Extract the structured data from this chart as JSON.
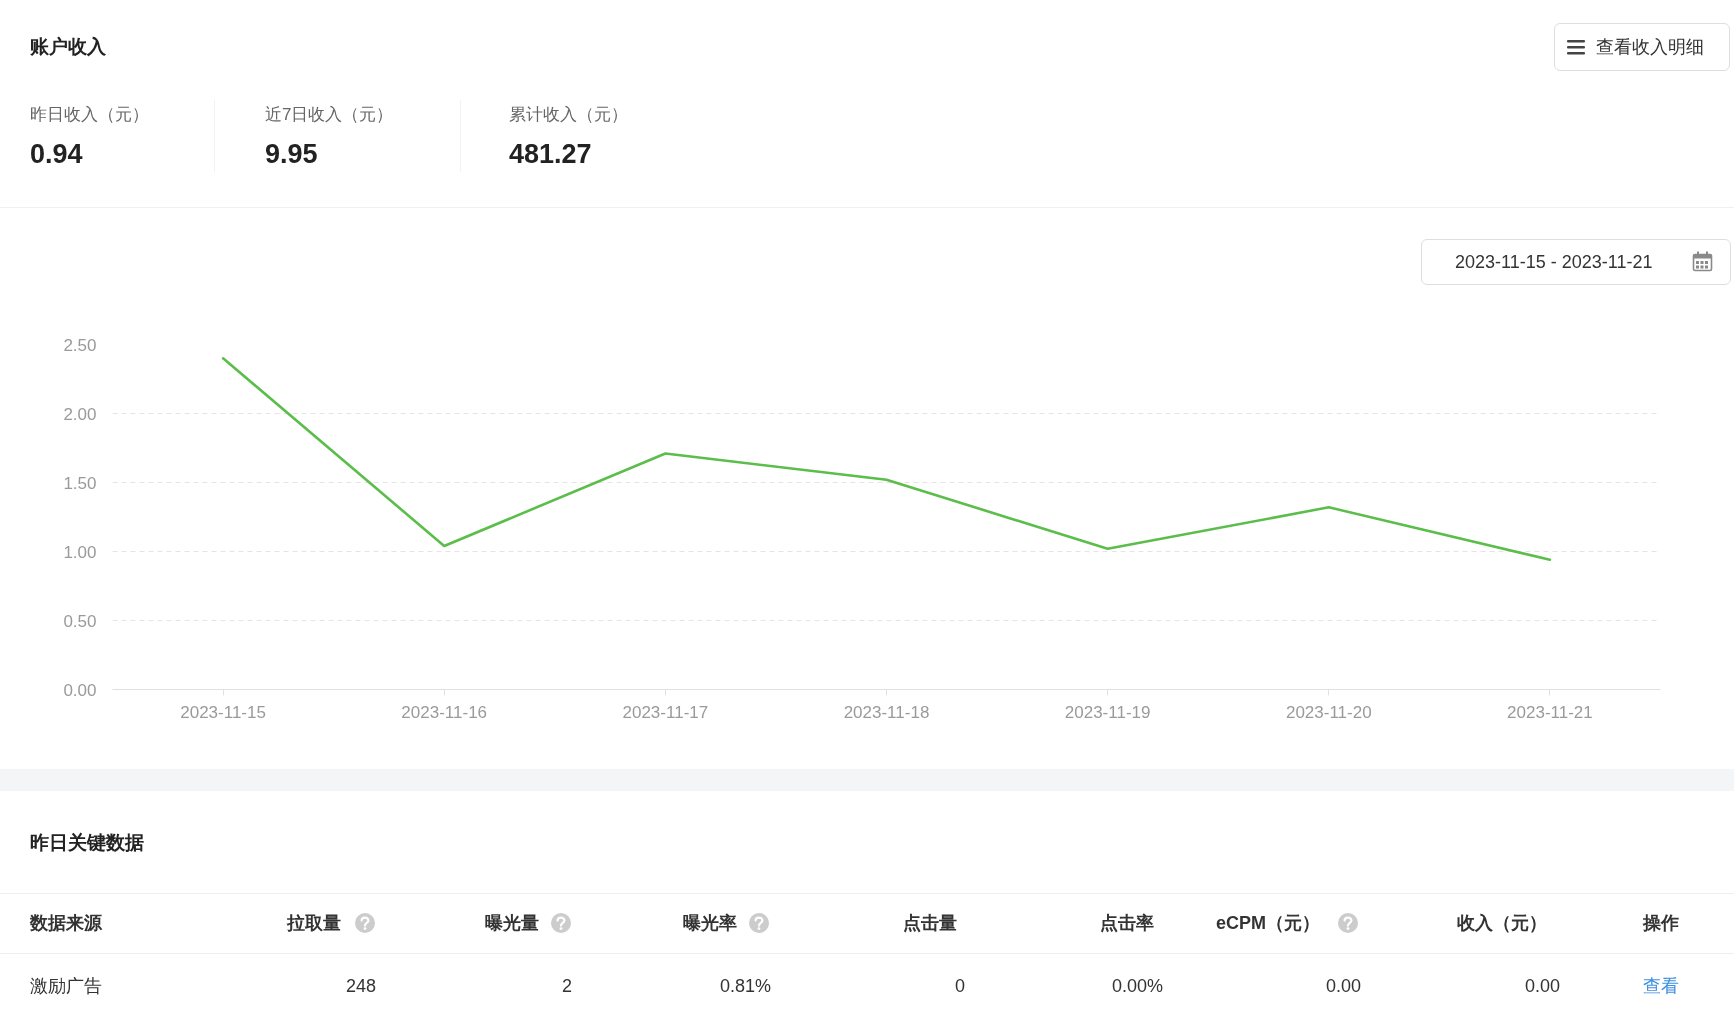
{
  "chart_data": {
    "type": "line",
    "title": "账户收入",
    "annotations": [
      "查看收入明细",
      "昨日收入（元）",
      "0.94",
      "近7日收入（元）",
      "9.95",
      "累计收入（元）",
      "481.27",
      "2023-11-15 - 2023-11-21",
      "昨日关键数据",
      "数据来源",
      "拉取量",
      "曝光量",
      "曝光率",
      "点击量",
      "点击率",
      "eCPM（元）",
      "收入（元）",
      "操作",
      "激励广告",
      "248",
      "2",
      "0.81%",
      "0",
      "0.00%",
      "0.00",
      "0.00",
      "查看"
    ],
    "categories": [
      "2023-11-15",
      "2023-11-16",
      "2023-11-17",
      "2023-11-18",
      "2023-11-19",
      "2023-11-20",
      "2023-11-21"
    ],
    "values": [
      2.4,
      1.04,
      1.71,
      1.52,
      1.02,
      1.32,
      0.94
    ],
    "color": "#5bbd4a",
    "ylim": [
      0,
      2.5
    ],
    "yticks": [
      {
        "value": 0,
        "label": "0.00"
      },
      {
        "value": 0.5,
        "label": "0.50"
      },
      {
        "value": 1,
        "label": "1.00"
      },
      {
        "value": 1.5,
        "label": "1.50"
      },
      {
        "value": 2,
        "label": "2.00"
      },
      {
        "value": 2.5,
        "label": "2.50"
      }
    ],
    "grid": "y"
  }
}
